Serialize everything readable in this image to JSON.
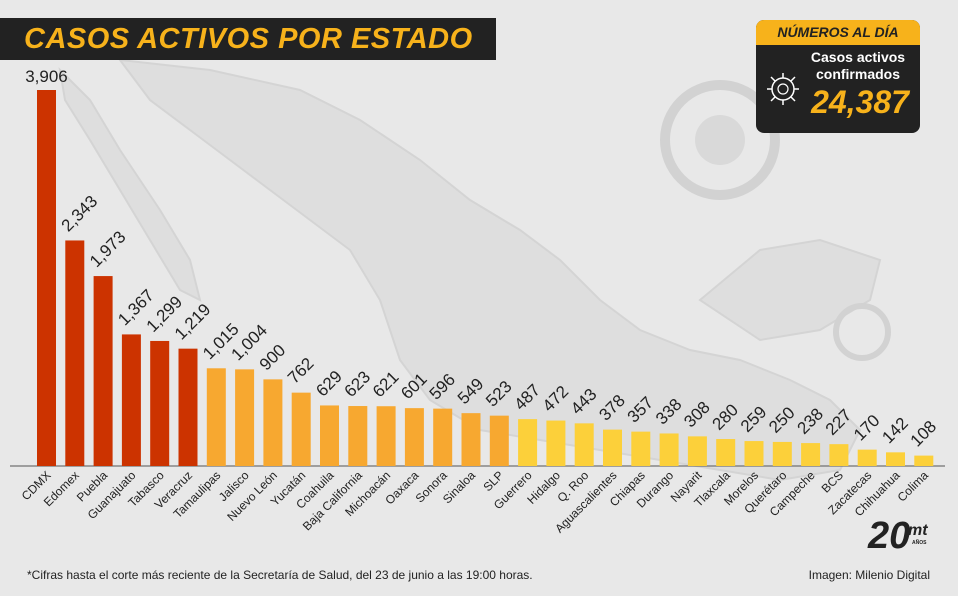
{
  "title": "CASOS ACTIVOS POR ESTADO",
  "summary": {
    "header": "NÚMEROS AL DÍA",
    "label": "Casos activos confirmados",
    "total": "24,387",
    "icon": "virus-icon"
  },
  "footnote": "*Cifras hasta el corte más reciente de la Secretaría de Salud, del 23 de junio a las 19:00 horas.",
  "credit": "Imagen: Milenio Digital",
  "logo": {
    "number": "20",
    "brand": "mt",
    "sub": "AÑOS"
  },
  "colors": {
    "background": "#e8e8e8",
    "title_bar": "#222222",
    "accent": "#f7b21b",
    "high": "#cc3300",
    "mid": "#f7a830",
    "low": "#fcd03a",
    "axis": "#555555",
    "text": "#222222"
  },
  "chart_data": {
    "type": "bar",
    "title": "CASOS ACTIVOS POR ESTADO",
    "xlabel": "",
    "ylabel": "",
    "ylim": [
      0,
      3906
    ],
    "grid": false,
    "legend": "none",
    "categories": [
      "CDMX",
      "Edomex",
      "Puebla",
      "Guanajuato",
      "Tabasco",
      "Veracruz",
      "Tamaulipas",
      "Jalisco",
      "Nuevo León",
      "Yucatán",
      "Coahuila",
      "Baja California",
      "Michoacán",
      "Oaxaca",
      "Sonora",
      "Sinaloa",
      "SLP",
      "Guerrero",
      "Hidalgo",
      "Q. Roo",
      "Aguascalientes",
      "Chiapas",
      "Durango",
      "Nayarit",
      "Tlaxcala",
      "Morelos",
      "Querétaro",
      "Campeche",
      "BCS",
      "Zacatecas",
      "Chihuahua",
      "Colima"
    ],
    "values": [
      3906,
      2343,
      1973,
      1367,
      1299,
      1219,
      1015,
      1004,
      900,
      762,
      629,
      623,
      621,
      601,
      596,
      549,
      523,
      487,
      472,
      443,
      378,
      357,
      338,
      308,
      280,
      259,
      250,
      238,
      227,
      170,
      142,
      108
    ],
    "value_labels": [
      "3,906",
      "2,343",
      "1,973",
      "1,367",
      "1,299",
      "1,219",
      "1,015",
      "1,004",
      "900",
      "762",
      "629",
      "623",
      "621",
      "601",
      "596",
      "549",
      "523",
      "487",
      "472",
      "443",
      "378",
      "357",
      "338",
      "308",
      "280",
      "259",
      "250",
      "238",
      "227",
      "170",
      "142",
      "108"
    ],
    "color_groups": [
      "high",
      "high",
      "high",
      "high",
      "high",
      "high",
      "mid",
      "mid",
      "mid",
      "mid",
      "mid",
      "mid",
      "mid",
      "mid",
      "mid",
      "mid",
      "mid",
      "low",
      "low",
      "low",
      "low",
      "low",
      "low",
      "low",
      "low",
      "low",
      "low",
      "low",
      "low",
      "low",
      "low",
      "low"
    ]
  }
}
